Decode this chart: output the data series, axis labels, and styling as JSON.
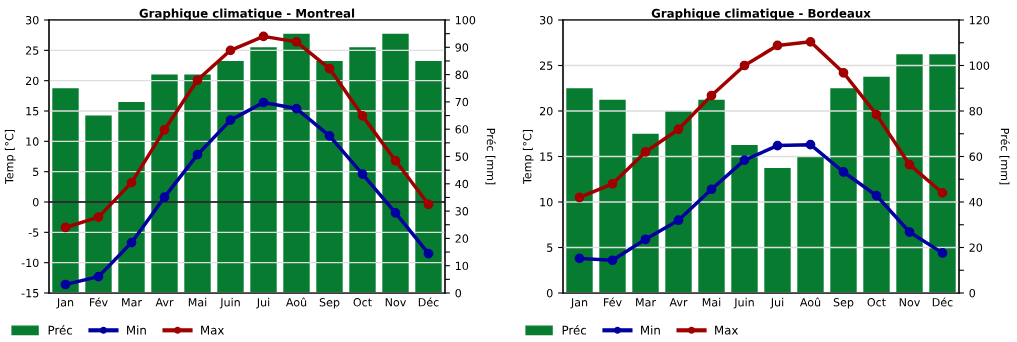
{
  "chart_data": [
    {
      "type": "bar",
      "title": "Graphique climatique - Montreal",
      "ylabel": "Temp [°C]",
      "y2label": "Préc [mm]",
      "categories": [
        "Jan",
        "Fév",
        "Mar",
        "Avr",
        "Mai",
        "Juin",
        "Jui",
        "Aoû",
        "Sep",
        "Oct",
        "Nov",
        "Déc"
      ],
      "series": [
        {
          "name": "Préc",
          "axis": "y2",
          "color": "#077c30",
          "values": [
            75,
            65,
            70,
            80,
            80,
            85,
            90,
            95,
            85,
            90,
            95,
            85
          ]
        },
        {
          "name": "Min",
          "type": "line",
          "color": "#0000a0",
          "values": [
            -13.6,
            -12.3,
            -6.7,
            0.8,
            7.8,
            13.5,
            16.4,
            15.4,
            10.9,
            4.6,
            -1.8,
            -8.5
          ]
        },
        {
          "name": "Max",
          "type": "line",
          "color": "#a00000",
          "values": [
            -4.2,
            -2.5,
            3.2,
            11.9,
            20.1,
            25.0,
            27.3,
            26.4,
            22.0,
            14.2,
            6.8,
            -0.4
          ]
        }
      ],
      "ylim": [
        -15,
        30
      ],
      "yticks": [
        -15,
        -10,
        -5,
        0,
        5,
        10,
        15,
        20,
        25,
        30
      ],
      "y2lim": [
        0,
        100
      ],
      "y2ticks": [
        0,
        {
          "value": 5,
          "label": null
        },
        10,
        {
          "value": 15,
          "label": null
        },
        20,
        {
          "value": 25,
          "label": null
        },
        30,
        {
          "value": 35,
          "label": null
        },
        40,
        {
          "value": 45,
          "label": null
        },
        50,
        {
          "value": 55,
          "label": null
        },
        60,
        {
          "value": 65,
          "label": null
        },
        70,
        {
          "value": 75,
          "label": null
        },
        80,
        {
          "value": 85,
          "label": null
        },
        90,
        {
          "value": 95,
          "label": null
        },
        100
      ],
      "ref_lines": [
        {
          "axis": "y",
          "value": 0,
          "color": "#000000"
        }
      ],
      "grid": true,
      "legend": "bottom left",
      "marker": "circle",
      "line_style": "solid"
    },
    {
      "type": "bar",
      "title": "Graphique climatique - Bordeaux",
      "ylabel": "Temp [°C]",
      "y2label": "Préc [mm]",
      "categories": [
        "Jan",
        "Fév",
        "Mar",
        "Avr",
        "Mai",
        "Juin",
        "Jui",
        "Aoû",
        "Sep",
        "Oct",
        "Nov",
        "Déc"
      ],
      "series": [
        {
          "name": "Préc",
          "axis": "y2",
          "color": "#077c30",
          "values": [
            90,
            85,
            70,
            80,
            85,
            65,
            55,
            60,
            90,
            95,
            105,
            105
          ]
        },
        {
          "name": "Min",
          "type": "line",
          "color": "#0000a0",
          "values": [
            3.8,
            3.6,
            5.9,
            8.0,
            11.4,
            14.6,
            16.2,
            16.3,
            13.3,
            10.7,
            6.7,
            4.4
          ]
        },
        {
          "name": "Max",
          "type": "line",
          "color": "#a00000",
          "values": [
            10.5,
            12.0,
            15.5,
            18.0,
            21.7,
            25.0,
            27.2,
            27.6,
            24.2,
            19.6,
            14.1,
            11.0
          ]
        }
      ],
      "ylim": [
        0,
        30
      ],
      "yticks": [
        0,
        5,
        10,
        15,
        20,
        25,
        30
      ],
      "y2lim": [
        0,
        120
      ],
      "y2ticks": [
        0,
        {
          "value": 10,
          "label": null
        },
        20,
        {
          "value": 30,
          "label": null
        },
        40,
        {
          "value": 50,
          "label": null
        },
        60,
        {
          "value": 70,
          "label": null
        },
        80,
        {
          "value": 90,
          "label": null
        },
        100,
        {
          "value": 110,
          "label": null
        },
        120
      ],
      "grid": true,
      "legend": "bottom left",
      "marker": "circle",
      "line_style": "solid"
    }
  ]
}
